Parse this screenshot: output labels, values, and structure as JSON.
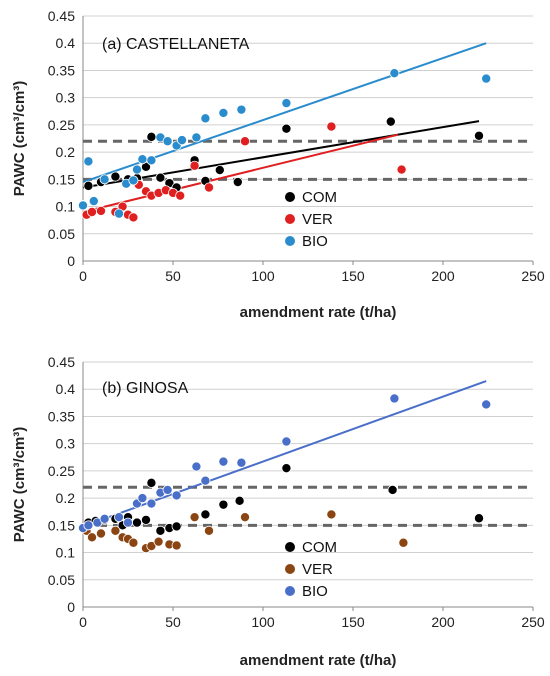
{
  "chart_data": [
    {
      "type": "scatter",
      "panel_label": "(a) CASTELLANETA",
      "xlabel": "amendment rate (t/ha)",
      "ylabel": "PAWC (cm³/cm³)",
      "xlim": [
        0,
        250
      ],
      "ylim": [
        0,
        0.45
      ],
      "xticks": [
        "0",
        "50",
        "100",
        "150",
        "200",
        "250"
      ],
      "yticks": [
        "0",
        "0.05",
        "0.1",
        "0.15",
        "0.2",
        "0.25",
        "0.3",
        "0.35",
        "0.4",
        "0.45"
      ],
      "grid": "horizontal",
      "legend_position": "center-right",
      "reference_lines": [
        0.15,
        0.22
      ],
      "series": [
        {
          "name": "COM",
          "color": "#000000",
          "points": [
            [
              0,
              0.103
            ],
            [
              3,
              0.138
            ],
            [
              10,
              0.145
            ],
            [
              18,
              0.155
            ],
            [
              25,
              0.15
            ],
            [
              30,
              0.152
            ],
            [
              35,
              0.173
            ],
            [
              38,
              0.228
            ],
            [
              43,
              0.153
            ],
            [
              48,
              0.143
            ],
            [
              52,
              0.135
            ],
            [
              62,
              0.185
            ],
            [
              68,
              0.147
            ],
            [
              76,
              0.167
            ],
            [
              86,
              0.145
            ],
            [
              113,
              0.243
            ],
            [
              171,
              0.256
            ],
            [
              220,
              0.23
            ]
          ],
          "trend": [
            [
              0,
              0.135
            ],
            [
              220,
              0.257
            ]
          ]
        },
        {
          "name": "VER",
          "color": "#e02020",
          "points": [
            [
              2,
              0.085
            ],
            [
              5,
              0.09
            ],
            [
              10,
              0.092
            ],
            [
              18,
              0.09
            ],
            [
              22,
              0.1
            ],
            [
              25,
              0.085
            ],
            [
              28,
              0.08
            ],
            [
              31,
              0.14
            ],
            [
              35,
              0.128
            ],
            [
              38,
              0.12
            ],
            [
              42,
              0.125
            ],
            [
              46,
              0.13
            ],
            [
              50,
              0.125
            ],
            [
              54,
              0.12
            ],
            [
              62,
              0.175
            ],
            [
              70,
              0.135
            ],
            [
              90,
              0.22
            ],
            [
              138,
              0.247
            ],
            [
              177,
              0.168
            ]
          ],
          "trend": [
            [
              0,
              0.09
            ],
            [
              175,
              0.232
            ]
          ]
        },
        {
          "name": "BIO",
          "color": "#2a8ccd",
          "points": [
            [
              0,
              0.102
            ],
            [
              3,
              0.183
            ],
            [
              6,
              0.11
            ],
            [
              12,
              0.15
            ],
            [
              20,
              0.087
            ],
            [
              24,
              0.142
            ],
            [
              28,
              0.148
            ],
            [
              30,
              0.168
            ],
            [
              33,
              0.187
            ],
            [
              38,
              0.185
            ],
            [
              43,
              0.227
            ],
            [
              47,
              0.22
            ],
            [
              52,
              0.212
            ],
            [
              55,
              0.222
            ],
            [
              63,
              0.227
            ],
            [
              68,
              0.262
            ],
            [
              78,
              0.272
            ],
            [
              88,
              0.278
            ],
            [
              113,
              0.29
            ],
            [
              173,
              0.345
            ],
            [
              224,
              0.335
            ]
          ],
          "trend": [
            [
              0,
              0.145
            ],
            [
              224,
              0.4
            ]
          ]
        }
      ]
    },
    {
      "type": "scatter",
      "panel_label": "(b) GINOSA",
      "xlabel": "amendment rate (t/ha)",
      "ylabel": "PAWC (cm³/cm³)",
      "xlim": [
        0,
        250
      ],
      "ylim": [
        0,
        0.45
      ],
      "xticks": [
        "0",
        "50",
        "100",
        "150",
        "200",
        "250"
      ],
      "yticks": [
        "0",
        "0.05",
        "0.1",
        "0.15",
        "0.2",
        "0.25",
        "0.3",
        "0.35",
        "0.4",
        "0.45"
      ],
      "grid": "horizontal",
      "legend_position": "center-right",
      "reference_lines": [
        0.15,
        0.22
      ],
      "series": [
        {
          "name": "COM",
          "color": "#000000",
          "points": [
            [
              3,
              0.155
            ],
            [
              7,
              0.158
            ],
            [
              12,
              0.16
            ],
            [
              18,
              0.162
            ],
            [
              22,
              0.15
            ],
            [
              25,
              0.165
            ],
            [
              30,
              0.155
            ],
            [
              35,
              0.16
            ],
            [
              38,
              0.228
            ],
            [
              43,
              0.14
            ],
            [
              48,
              0.145
            ],
            [
              52,
              0.148
            ],
            [
              62,
              0.165
            ],
            [
              68,
              0.17
            ],
            [
              78,
              0.188
            ],
            [
              87,
              0.195
            ],
            [
              113,
              0.255
            ],
            [
              172,
              0.215
            ],
            [
              220,
              0.163
            ]
          ],
          "trend": null
        },
        {
          "name": "VER",
          "color": "#8b4513",
          "points": [
            [
              2,
              0.14
            ],
            [
              5,
              0.128
            ],
            [
              10,
              0.135
            ],
            [
              18,
              0.14
            ],
            [
              22,
              0.128
            ],
            [
              25,
              0.125
            ],
            [
              28,
              0.118
            ],
            [
              35,
              0.108
            ],
            [
              38,
              0.112
            ],
            [
              42,
              0.12
            ],
            [
              48,
              0.115
            ],
            [
              52,
              0.113
            ],
            [
              62,
              0.165
            ],
            [
              70,
              0.14
            ],
            [
              90,
              0.165
            ],
            [
              138,
              0.17
            ],
            [
              178,
              0.118
            ]
          ],
          "trend": null
        },
        {
          "name": "BIO",
          "color": "#4a6fc8",
          "points": [
            [
              0,
              0.145
            ],
            [
              3,
              0.15
            ],
            [
              8,
              0.155
            ],
            [
              12,
              0.162
            ],
            [
              20,
              0.165
            ],
            [
              25,
              0.155
            ],
            [
              30,
              0.19
            ],
            [
              33,
              0.2
            ],
            [
              38,
              0.19
            ],
            [
              43,
              0.21
            ],
            [
              47,
              0.215
            ],
            [
              52,
              0.205
            ],
            [
              63,
              0.258
            ],
            [
              68,
              0.232
            ],
            [
              78,
              0.267
            ],
            [
              88,
              0.265
            ],
            [
              113,
              0.304
            ],
            [
              173,
              0.383
            ],
            [
              224,
              0.372
            ]
          ],
          "trend": [
            [
              0,
              0.148
            ],
            [
              224,
              0.415
            ]
          ]
        }
      ]
    }
  ]
}
